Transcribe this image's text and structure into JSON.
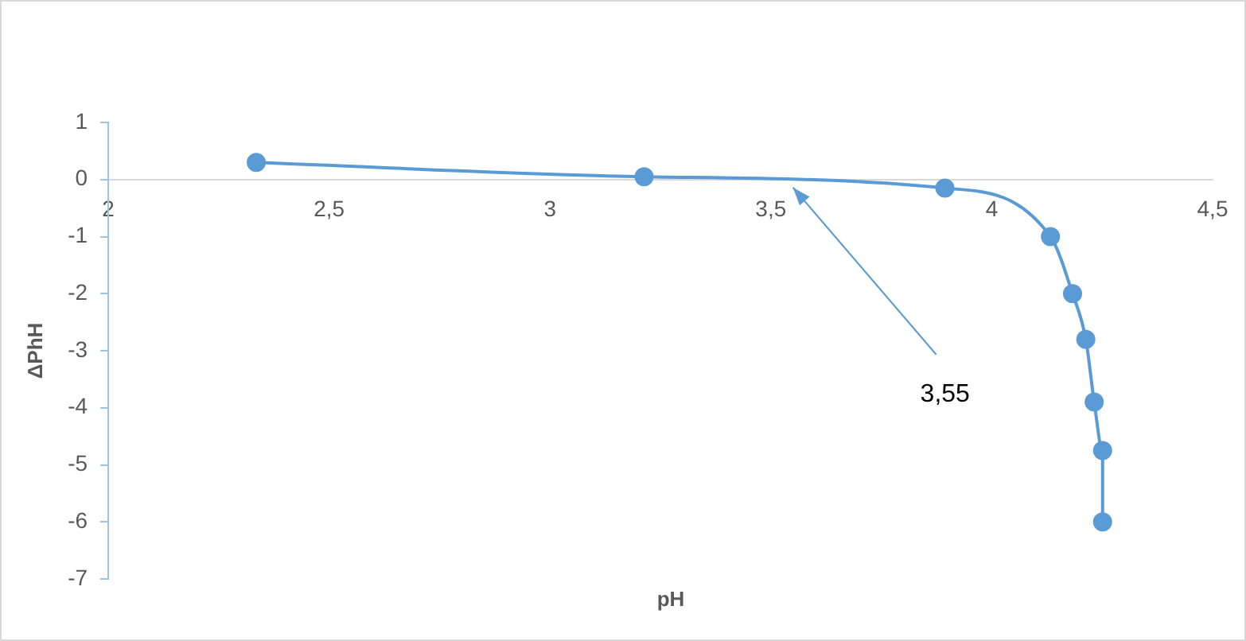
{
  "chart_data": {
    "type": "line",
    "xlabel": "pH",
    "ylabel": "ΔPhH",
    "x": [
      2.335,
      3.213,
      3.894,
      4.133,
      4.183,
      4.213,
      4.232,
      4.251,
      4.251
    ],
    "series": [
      {
        "color": "#5b9bd5",
        "values": [
          0.3,
          0.05,
          -0.15,
          -1.0,
          -2.0,
          -2.8,
          -3.9,
          -4.75,
          -6.0
        ]
      }
    ],
    "xlim": [
      2,
      4.5
    ],
    "xticks": [
      2,
      {
        "value": 2.5,
        "label": "2,5"
      },
      3,
      {
        "value": 3.5,
        "label": "3,5"
      },
      4,
      {
        "value": 4.5,
        "label": "4,5"
      }
    ],
    "ylim": [
      -7,
      1
    ],
    "yticks": [
      -7,
      -6,
      -5,
      -4,
      -3,
      -2,
      -1,
      0,
      1
    ],
    "annotations": [
      {
        "text": "3,55",
        "x": 3.55,
        "y": 0
      }
    ],
    "grid": false,
    "legend": false,
    "marker": "circle",
    "line_style": "solid"
  }
}
